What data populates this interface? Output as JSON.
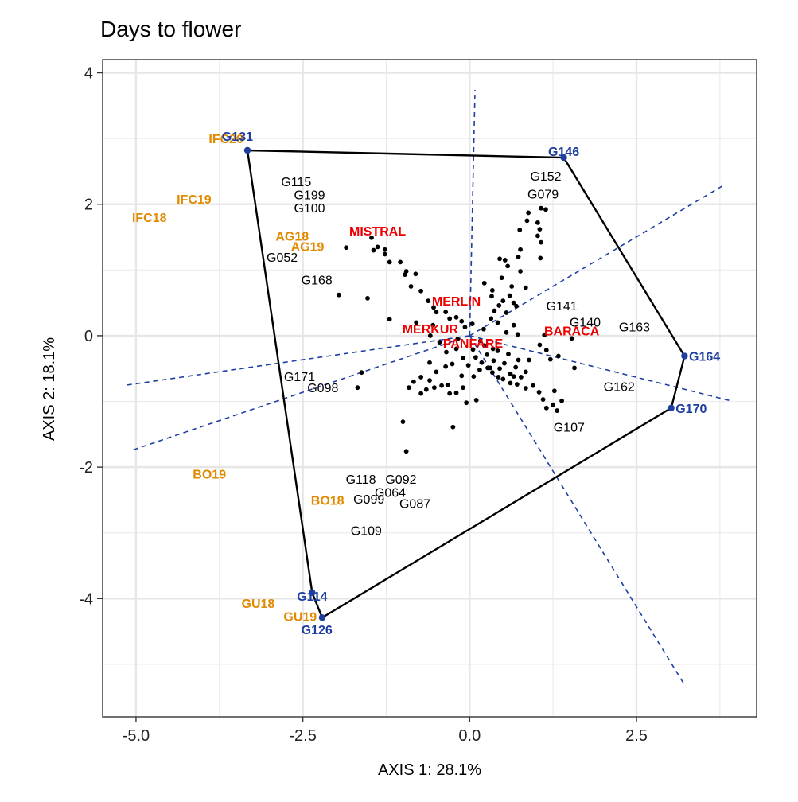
{
  "chart_data": {
    "type": "scatter",
    "title": "Days to flower",
    "xlabel": "AXIS 1: 28.1%",
    "ylabel": "AXIS 2: 18.1%",
    "xlim": [
      -5.5,
      4.3
    ],
    "ylim": [
      -5.8,
      4.2
    ],
    "xticks": [
      -5.0,
      -2.5,
      0.0,
      2.5
    ],
    "xtick_labels": [
      "-5.0",
      "-2.5",
      "0.0",
      "2.5"
    ],
    "yticks": [
      -4,
      -2,
      0,
      2,
      4
    ],
    "ytick_labels": [
      "-4",
      "-2",
      "0",
      "2",
      "4"
    ],
    "grid": true,
    "colors": {
      "environment": "#E08A00",
      "vertex": "#1F3FA0",
      "check": "#EE0000",
      "genotype": "#000000",
      "hull": "#000000",
      "rays": "#1F3FA0"
    },
    "hull": [
      {
        "label": "G131",
        "x": -3.33,
        "y": 2.82
      },
      {
        "label": "G146",
        "x": 1.41,
        "y": 2.71
      },
      {
        "label": "G164",
        "x": 3.22,
        "y": -0.31
      },
      {
        "label": "G170",
        "x": 3.02,
        "y": -1.1
      },
      {
        "label": "G126",
        "x": -2.21,
        "y": -4.29
      },
      {
        "label": "G114",
        "x": -2.36,
        "y": -3.91
      }
    ],
    "vertex_labels": [
      {
        "label": "G131",
        "x": -3.33,
        "y": 2.82,
        "dx": -0.15,
        "dy": 0.22
      },
      {
        "label": "G146",
        "x": 1.41,
        "y": 2.71,
        "dx": 0.0,
        "dy": 0.1
      },
      {
        "label": "G164",
        "x": 3.22,
        "y": -0.31,
        "dx": 0.3,
        "dy": -0.0
      },
      {
        "label": "G170",
        "x": 3.02,
        "y": -1.1,
        "dx": 0.3,
        "dy": -0.0
      },
      {
        "label": "G114",
        "x": -2.36,
        "y": -3.91,
        "dx": 0.0,
        "dy": -0.05
      },
      {
        "label": "G126",
        "x": -2.21,
        "y": -4.29,
        "dx": -0.08,
        "dy": -0.18
      }
    ],
    "rays": [
      {
        "x": 0.08,
        "y": 3.74
      },
      {
        "x": 3.84,
        "y": 2.31
      },
      {
        "x": 3.91,
        "y": -0.99
      },
      {
        "x": 3.2,
        "y": -5.28
      },
      {
        "x": -5.08,
        "y": -1.75
      },
      {
        "x": -5.13,
        "y": -0.75
      }
    ],
    "environments": [
      {
        "label": "IFC20",
        "x": -3.65,
        "y": 3.0
      },
      {
        "label": "IFC19",
        "x": -4.13,
        "y": 2.08
      },
      {
        "label": "IFC18",
        "x": -4.8,
        "y": 1.8
      },
      {
        "label": "AG18",
        "x": -2.66,
        "y": 1.52
      },
      {
        "label": "AG19",
        "x": -2.43,
        "y": 1.36
      },
      {
        "label": "BO19",
        "x": -3.9,
        "y": -2.1
      },
      {
        "label": "BO18",
        "x": -2.13,
        "y": -2.5
      },
      {
        "label": "GU18",
        "x": -3.17,
        "y": -4.07
      },
      {
        "label": "GU19",
        "x": -2.54,
        "y": -4.27
      }
    ],
    "checks": [
      {
        "label": "MISTRAL",
        "x": -1.38,
        "y": 1.6
      },
      {
        "label": "MERLIN",
        "x": -0.2,
        "y": 0.53
      },
      {
        "label": "MERKUR",
        "x": -0.59,
        "y": 0.11
      },
      {
        "label": "PANFARE",
        "x": 0.05,
        "y": -0.11
      },
      {
        "label": "BARACA",
        "x": 1.53,
        "y": 0.08
      }
    ],
    "check_points": [
      {
        "x": -1.38,
        "y": 1.35
      },
      {
        "x": -0.2,
        "y": 0.28
      },
      {
        "x": -0.59,
        "y": -0.0
      },
      {
        "x": 0.05,
        "y": -0.21
      },
      {
        "x": 1.53,
        "y": -0.04
      }
    ],
    "genotype_labels": [
      {
        "label": "G115",
        "x": -2.6,
        "y": 2.35
      },
      {
        "label": "G199",
        "x": -2.4,
        "y": 2.15
      },
      {
        "label": "G100",
        "x": -2.4,
        "y": 1.95
      },
      {
        "label": "G052",
        "x": -2.81,
        "y": 1.2
      },
      {
        "label": "G168",
        "x": -2.29,
        "y": 0.85
      },
      {
        "label": "G152",
        "x": 1.14,
        "y": 2.43
      },
      {
        "label": "G079",
        "x": 1.1,
        "y": 2.16
      },
      {
        "label": "G141",
        "x": 1.38,
        "y": 0.46
      },
      {
        "label": "G140",
        "x": 1.73,
        "y": 0.21
      },
      {
        "label": "G163",
        "x": 2.47,
        "y": 0.14
      },
      {
        "label": "G162",
        "x": 2.24,
        "y": -0.77
      },
      {
        "label": "G107",
        "x": 1.49,
        "y": -1.39
      },
      {
        "label": "G171",
        "x": -2.55,
        "y": -0.62
      },
      {
        "label": "G098",
        "x": -2.2,
        "y": -0.79
      },
      {
        "label": "G118",
        "x": -1.63,
        "y": -2.18
      },
      {
        "label": "G092",
        "x": -1.03,
        "y": -2.18
      },
      {
        "label": "G064",
        "x": -1.19,
        "y": -2.38
      },
      {
        "label": "G099",
        "x": -1.51,
        "y": -2.48
      },
      {
        "label": "G087",
        "x": -0.82,
        "y": -2.55
      },
      {
        "label": "G109",
        "x": -1.55,
        "y": -2.96
      }
    ],
    "genotype_points": [
      {
        "x": 1.07,
        "y": 1.94
      },
      {
        "x": 1.14,
        "y": 1.92
      },
      {
        "x": 0.88,
        "y": 1.87
      },
      {
        "x": 0.86,
        "y": 1.75
      },
      {
        "x": 1.02,
        "y": 1.72
      },
      {
        "x": 1.05,
        "y": 1.62
      },
      {
        "x": 0.75,
        "y": 1.61
      },
      {
        "x": 1.02,
        "y": 1.52
      },
      {
        "x": 1.07,
        "y": 1.42
      },
      {
        "x": 1.06,
        "y": 1.18
      },
      {
        "x": 0.76,
        "y": 1.31
      },
      {
        "x": 0.73,
        "y": 1.2
      },
      {
        "x": 0.45,
        "y": 1.17
      },
      {
        "x": 0.53,
        "y": 1.15
      },
      {
        "x": 0.57,
        "y": 1.06
      },
      {
        "x": 0.76,
        "y": 0.98
      },
      {
        "x": 0.48,
        "y": 0.88
      },
      {
        "x": 0.63,
        "y": 0.75
      },
      {
        "x": 0.84,
        "y": 0.73
      },
      {
        "x": 0.22,
        "y": 0.8
      },
      {
        "x": 0.34,
        "y": 0.69
      },
      {
        "x": 0.33,
        "y": 0.6
      },
      {
        "x": 0.6,
        "y": 0.61
      },
      {
        "x": 0.5,
        "y": 0.53
      },
      {
        "x": 0.44,
        "y": 0.46
      },
      {
        "x": 0.66,
        "y": 0.5
      },
      {
        "x": 0.7,
        "y": 0.45
      },
      {
        "x": 0.37,
        "y": 0.38
      },
      {
        "x": 0.55,
        "y": 0.35
      },
      {
        "x": 0.32,
        "y": 0.26
      },
      {
        "x": 0.42,
        "y": 0.2
      },
      {
        "x": 0.66,
        "y": 0.16
      },
      {
        "x": 0.21,
        "y": 0.1
      },
      {
        "x": 0.55,
        "y": 0.05
      },
      {
        "x": 0.72,
        "y": 0.02
      },
      {
        "x": -1.85,
        "y": 1.34
      },
      {
        "x": -1.47,
        "y": 1.49
      },
      {
        "x": -1.44,
        "y": 1.3
      },
      {
        "x": -1.27,
        "y": 1.31
      },
      {
        "x": -1.27,
        "y": 1.24
      },
      {
        "x": -1.2,
        "y": 1.12
      },
      {
        "x": -1.04,
        "y": 1.12
      },
      {
        "x": -0.95,
        "y": 0.98
      },
      {
        "x": -0.97,
        "y": 0.93
      },
      {
        "x": -0.81,
        "y": 0.94
      },
      {
        "x": -0.88,
        "y": 0.75
      },
      {
        "x": -0.73,
        "y": 0.68
      },
      {
        "x": -0.62,
        "y": 0.53
      },
      {
        "x": -0.54,
        "y": 0.43
      },
      {
        "x": -0.5,
        "y": 0.36
      },
      {
        "x": -0.36,
        "y": 0.36
      },
      {
        "x": -0.3,
        "y": 0.26
      },
      {
        "x": -0.12,
        "y": 0.22
      },
      {
        "x": -0.07,
        "y": 0.13
      },
      {
        "x": 0.04,
        "y": 0.18
      },
      {
        "x": -1.96,
        "y": 0.62
      },
      {
        "x": -1.53,
        "y": 0.57
      },
      {
        "x": -1.2,
        "y": 0.25
      },
      {
        "x": -0.8,
        "y": 0.2
      },
      {
        "x": -0.55,
        "y": 0.16
      },
      {
        "x": -0.45,
        "y": -0.1
      },
      {
        "x": -0.35,
        "y": -0.25
      },
      {
        "x": -0.2,
        "y": -0.2
      },
      {
        "x": -0.1,
        "y": -0.34
      },
      {
        "x": -0.02,
        "y": -0.45
      },
      {
        "x": 0.09,
        "y": -0.33
      },
      {
        "x": 0.18,
        "y": -0.41
      },
      {
        "x": 0.26,
        "y": -0.29
      },
      {
        "x": 0.31,
        "y": -0.49
      },
      {
        "x": 0.36,
        "y": -0.38
      },
      {
        "x": 0.45,
        "y": -0.5
      },
      {
        "x": 0.52,
        "y": -0.42
      },
      {
        "x": 0.61,
        "y": -0.58
      },
      {
        "x": 0.69,
        "y": -0.48
      },
      {
        "x": 0.77,
        "y": -0.63
      },
      {
        "x": 0.84,
        "y": -0.55
      },
      {
        "x": 0.95,
        "y": -0.76
      },
      {
        "x": 1.04,
        "y": -0.86
      },
      {
        "x": 1.1,
        "y": -0.97
      },
      {
        "x": 1.15,
        "y": -1.1
      },
      {
        "x": 1.25,
        "y": -1.05
      },
      {
        "x": 1.31,
        "y": -1.14
      },
      {
        "x": 1.38,
        "y": -0.99
      },
      {
        "x": 1.27,
        "y": -0.84
      },
      {
        "x": 0.71,
        "y": -0.74
      },
      {
        "x": 0.61,
        "y": -0.72
      },
      {
        "x": 0.5,
        "y": -0.66
      },
      {
        "x": 0.43,
        "y": -0.63
      },
      {
        "x": 0.34,
        "y": -0.56
      },
      {
        "x": 0.27,
        "y": -0.49
      },
      {
        "x": 0.15,
        "y": -0.52
      },
      {
        "x": 0.06,
        "y": -0.62
      },
      {
        "x": -0.12,
        "y": -0.61
      },
      {
        "x": -0.26,
        "y": -0.43
      },
      {
        "x": -0.36,
        "y": -0.47
      },
      {
        "x": -0.5,
        "y": -0.55
      },
      {
        "x": -0.6,
        "y": -0.68
      },
      {
        "x": -0.73,
        "y": -0.63
      },
      {
        "x": -0.84,
        "y": -0.7
      },
      {
        "x": -0.91,
        "y": -0.79
      },
      {
        "x": -0.53,
        "y": -0.79
      },
      {
        "x": -0.33,
        "y": -0.75
      },
      {
        "x": -0.1,
        "y": -0.79
      },
      {
        "x": -0.2,
        "y": -0.87
      },
      {
        "x": -0.05,
        "y": -1.02
      },
      {
        "x": 0.1,
        "y": -0.98
      },
      {
        "x": -0.3,
        "y": -0.88
      },
      {
        "x": -0.42,
        "y": -0.76
      },
      {
        "x": 0.84,
        "y": -0.8
      },
      {
        "x": 0.66,
        "y": -0.62
      },
      {
        "x": 1.15,
        "y": -0.22
      },
      {
        "x": 1.05,
        "y": -0.14
      },
      {
        "x": 1.12,
        "y": 0.01
      },
      {
        "x": 1.57,
        "y": -0.49
      },
      {
        "x": 1.33,
        "y": -0.31
      },
      {
        "x": 1.21,
        "y": -0.36
      },
      {
        "x": 0.89,
        "y": -0.37
      },
      {
        "x": 0.73,
        "y": -0.37
      },
      {
        "x": 0.58,
        "y": -0.28
      },
      {
        "x": 0.42,
        "y": -0.23
      },
      {
        "x": 0.35,
        "y": -0.2
      },
      {
        "x": 0.22,
        "y": -0.15
      },
      {
        "x": 0.16,
        "y": -0.08
      },
      {
        "x": -0.6,
        "y": -0.41
      },
      {
        "x": -0.18,
        "y": -0.05
      },
      {
        "x": -1.62,
        "y": -0.56
      },
      {
        "x": -1.68,
        "y": -0.79
      },
      {
        "x": -1.0,
        "y": -1.31
      },
      {
        "x": -0.73,
        "y": -0.88
      },
      {
        "x": -0.25,
        "y": -1.39
      },
      {
        "x": -0.95,
        "y": -1.76
      },
      {
        "x": -0.65,
        "y": -0.82
      }
    ]
  }
}
